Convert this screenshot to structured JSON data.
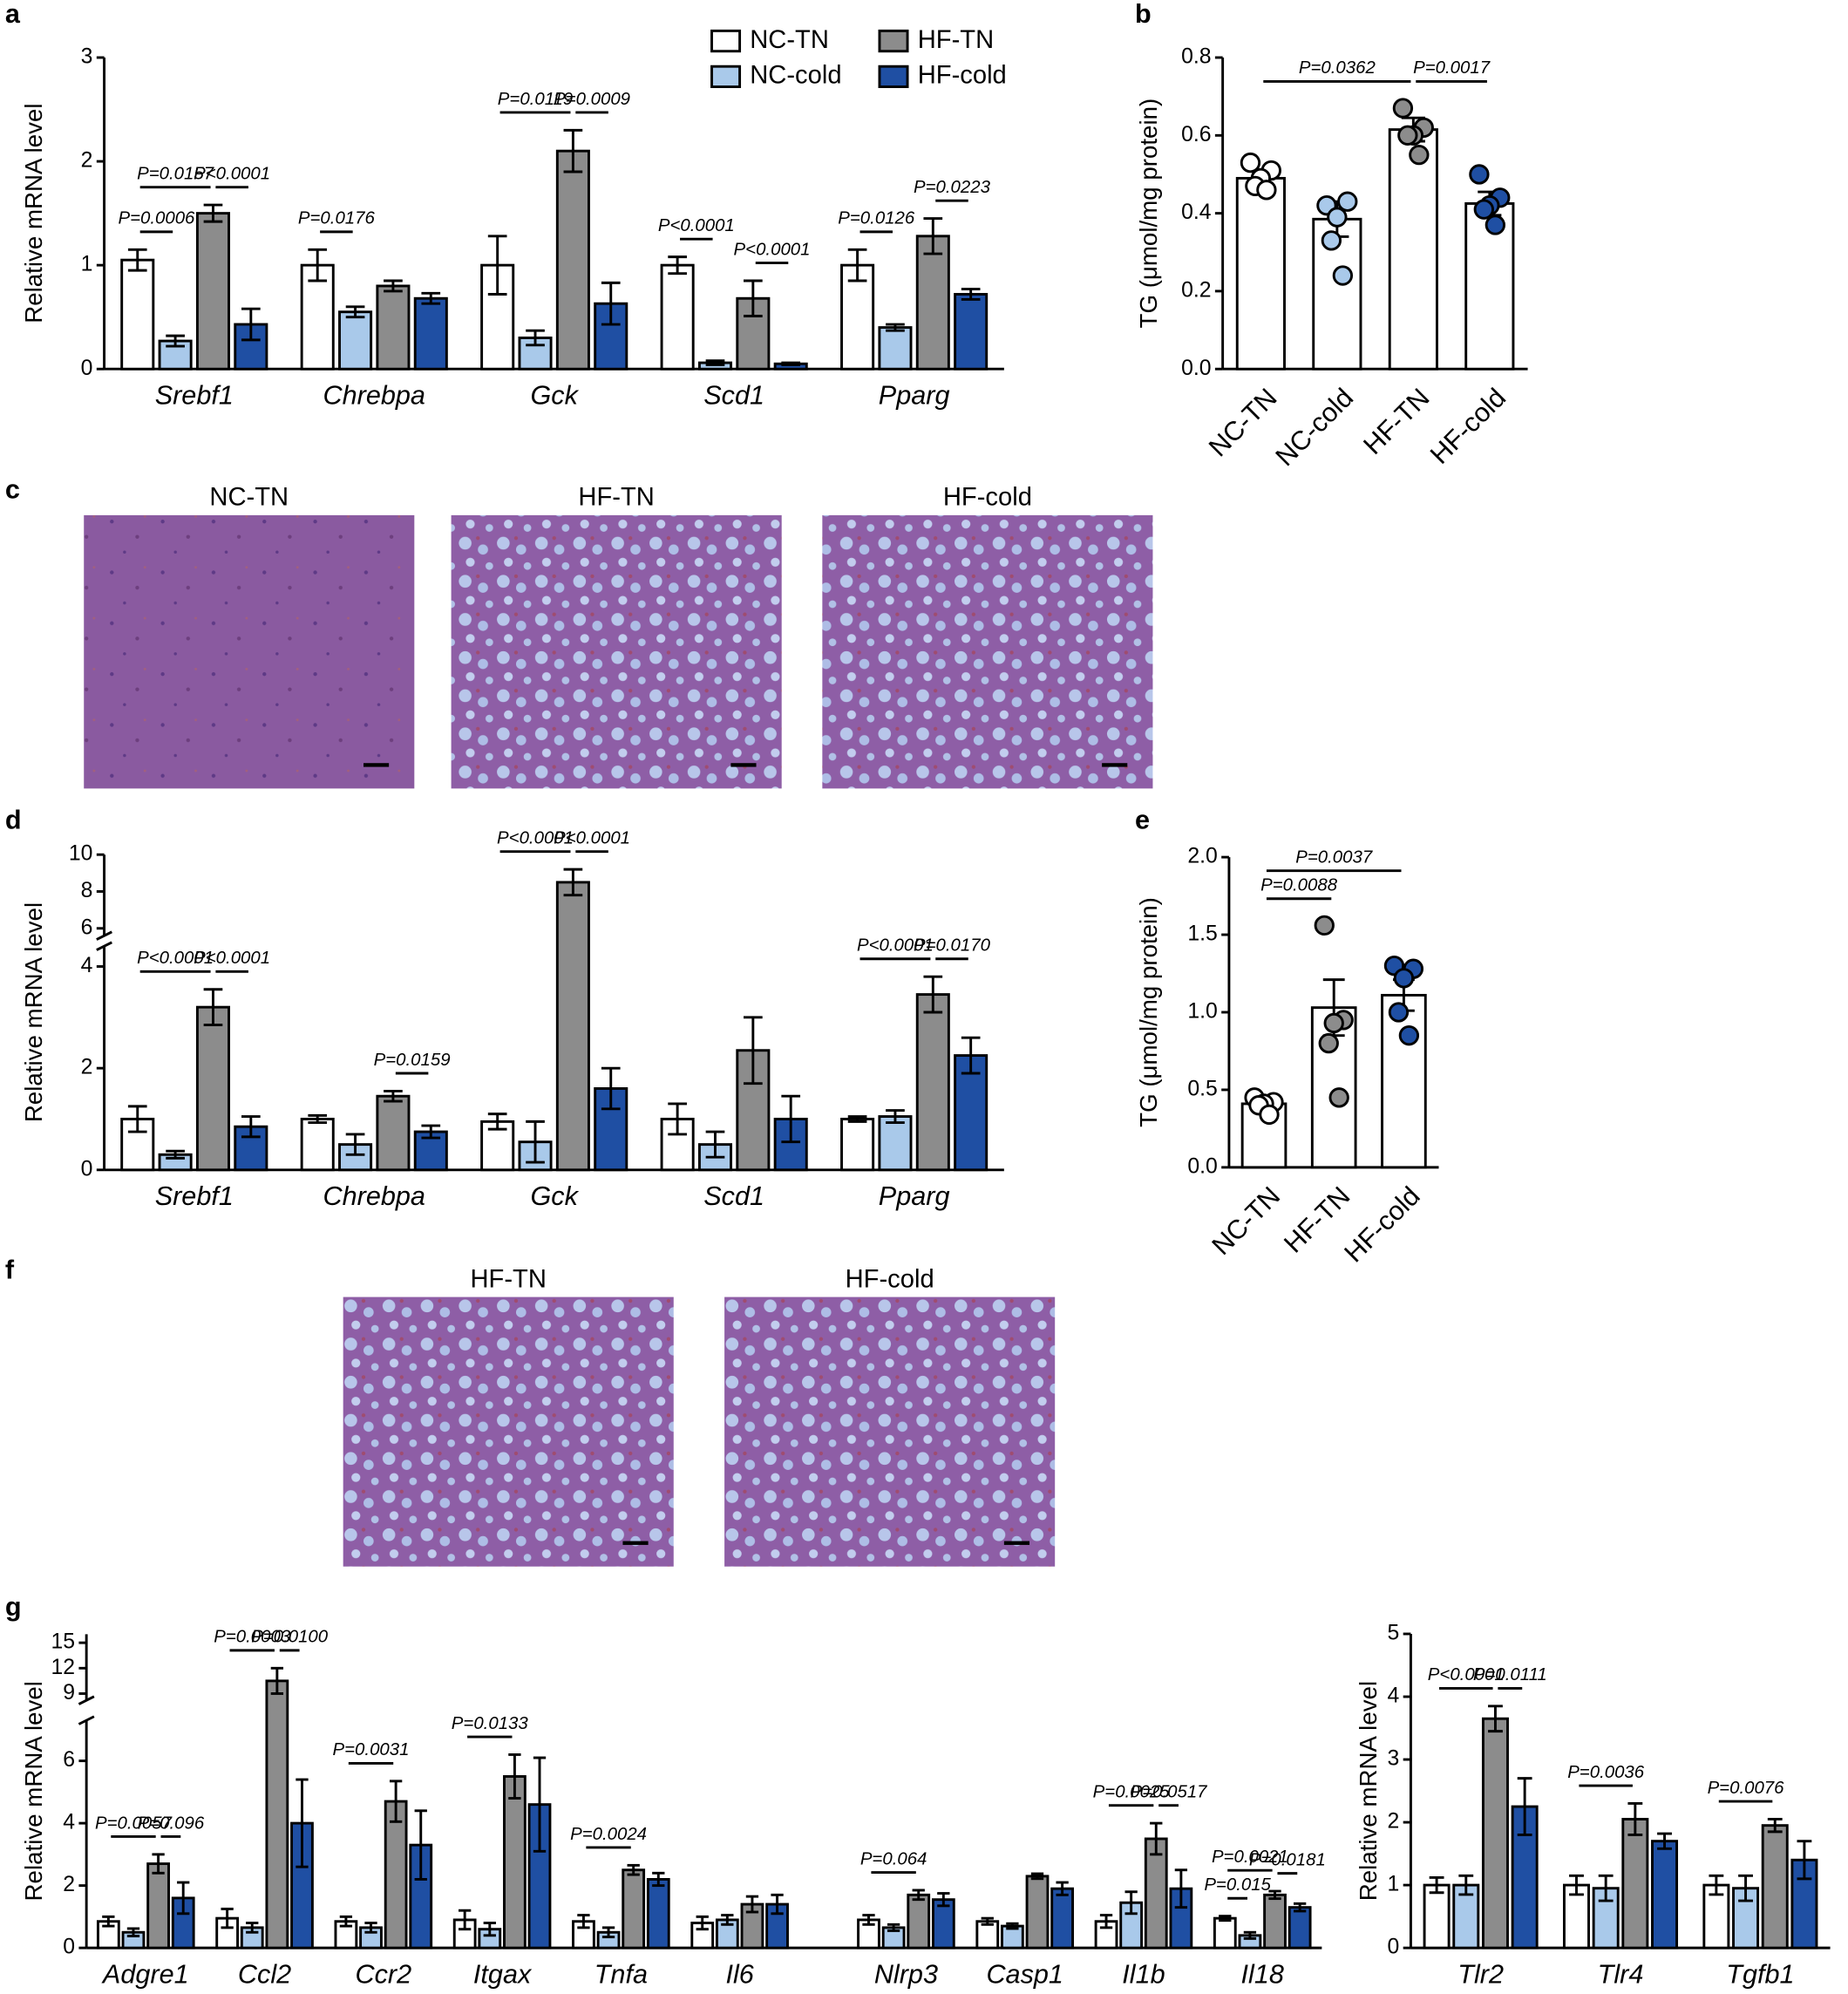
{
  "micrographs": [
    {
      "panel": "c",
      "labels": [
        "NC-TN",
        "HF-TN",
        "HF-cold"
      ]
    },
    {
      "panel": "f",
      "labels": [
        "HF-TN",
        "HF-cold"
      ]
    }
  ],
  "chart_data": [
    {
      "panel": "a",
      "type": "grouped-bar",
      "y_label": "Relative mRNA level",
      "legend": "top",
      "categories": [
        "Srebf1",
        "Chrebpa",
        "Gck",
        "Scd1",
        "Pparg"
      ],
      "series": [
        {
          "name": "NC-TN",
          "color": "#ffffff",
          "values": [
            1.05,
            1.0,
            1.0,
            1.0,
            1.0
          ],
          "errors": [
            0.1,
            0.15,
            0.28,
            0.08,
            0.15
          ]
        },
        {
          "name": "NC-cold",
          "color": "#a9c9ea",
          "values": [
            0.27,
            0.55,
            0.3,
            0.06,
            0.4
          ],
          "errors": [
            0.05,
            0.05,
            0.07,
            0.02,
            0.03
          ]
        },
        {
          "name": "HF-TN",
          "color": "#8c8c8c",
          "values": [
            1.5,
            0.8,
            2.1,
            0.68,
            1.28
          ],
          "errors": [
            0.08,
            0.05,
            0.2,
            0.17,
            0.17
          ]
        },
        {
          "name": "HF-cold",
          "color": "#1f4fa3",
          "values": [
            0.43,
            0.68,
            0.63,
            0.05,
            0.72
          ],
          "errors": [
            0.15,
            0.05,
            0.2,
            0.01,
            0.05
          ]
        }
      ],
      "ylim": [
        0,
        3
      ],
      "yticks": [
        0,
        1,
        2,
        3
      ],
      "significance": [
        {
          "category": 0,
          "from": 0,
          "to": 1,
          "label": "P=0.0006"
        },
        {
          "category": 0,
          "from": 0,
          "to": 2,
          "label": "P=0.0157"
        },
        {
          "category": 0,
          "from": 2,
          "to": 3,
          "label": "P<0.0001"
        },
        {
          "category": 1,
          "from": 0,
          "to": 1,
          "label": "P=0.0176"
        },
        {
          "category": 2,
          "from": 0,
          "to": 2,
          "label": "P=0.0119"
        },
        {
          "category": 2,
          "from": 2,
          "to": 3,
          "label": "P=0.0009"
        },
        {
          "category": 3,
          "from": 0,
          "to": 1,
          "label": "P<0.0001"
        },
        {
          "category": 3,
          "from": 2,
          "to": 3,
          "label": "P<0.0001"
        },
        {
          "category": 4,
          "from": 0,
          "to": 1,
          "label": "P=0.0126"
        },
        {
          "category": 4,
          "from": 2,
          "to": 3,
          "label": "P=0.0223"
        }
      ]
    },
    {
      "panel": "b",
      "type": "bar",
      "y_label": "TG (μmol/mg protein)",
      "categories": [
        "NC-TN",
        "NC-cold",
        "HF-TN",
        "HF-cold"
      ],
      "values": [
        0.49,
        0.385,
        0.615,
        0.425
      ],
      "errors": [
        0.02,
        0.045,
        0.03,
        0.03
      ],
      "colors": [
        "#ffffff",
        "#a9c9ea",
        "#8c8c8c",
        "#1f4fa3"
      ],
      "points": [
        [
          0.53,
          0.51,
          0.49,
          0.47,
          0.46
        ],
        [
          0.42,
          0.43,
          0.39,
          0.33,
          0.24
        ],
        [
          0.67,
          0.62,
          0.6,
          0.6,
          0.55
        ],
        [
          0.5,
          0.44,
          0.42,
          0.41,
          0.37
        ]
      ],
      "ylim": [
        0,
        0.8
      ],
      "yticks": [
        {
          "value": 0,
          "label": "0.0"
        },
        0.2,
        0.4,
        0.6,
        0.8
      ],
      "significance": [
        {
          "from": 0,
          "to": 2,
          "label": "P=0.0362"
        },
        {
          "from": 2,
          "to": 3,
          "label": "P=0.0017"
        }
      ]
    },
    {
      "panel": "d",
      "type": "grouped-bar",
      "y_label": "Relative mRNA level",
      "categories": [
        "Srebf1",
        "Chrebpa",
        "Gck",
        "Scd1",
        "Pparg"
      ],
      "series": [
        {
          "color": "#ffffff",
          "values": [
            1.0,
            1.0,
            0.95,
            1.0,
            1.0
          ],
          "errors": [
            0.25,
            0.07,
            0.15,
            0.3,
            0.05
          ]
        },
        {
          "color": "#a9c9ea",
          "values": [
            0.3,
            0.5,
            0.55,
            0.5,
            1.05
          ],
          "errors": [
            0.07,
            0.2,
            0.4,
            0.25,
            0.12
          ]
        },
        {
          "color": "#8c8c8c",
          "values": [
            3.2,
            1.45,
            8.5,
            2.35,
            3.45
          ],
          "errors": [
            0.35,
            0.1,
            0.7,
            0.65,
            0.35
          ]
        },
        {
          "color": "#1f4fa3",
          "values": [
            0.85,
            0.75,
            1.6,
            1.0,
            2.25
          ],
          "errors": [
            0.2,
            0.12,
            0.4,
            0.45,
            0.35
          ]
        }
      ],
      "ylim": [
        0,
        10
      ],
      "axis_break": [
        4.4,
        5.6
      ],
      "yticks": [
        0,
        2,
        4,
        6,
        8,
        10
      ],
      "significance": [
        {
          "category": 0,
          "from": 0,
          "to": 2,
          "label": "P<0.0001"
        },
        {
          "category": 0,
          "from": 2,
          "to": 3,
          "label": "P<0.0001"
        },
        {
          "category": 1,
          "from": 2,
          "to": 3,
          "label": "P=0.0159"
        },
        {
          "category": 2,
          "from": 0,
          "to": 2,
          "label": "P<0.0001"
        },
        {
          "category": 2,
          "from": 2,
          "to": 3,
          "label": "P<0.0001"
        },
        {
          "category": 4,
          "from": 0,
          "to": 2,
          "label": "P<0.0001"
        },
        {
          "category": 4,
          "from": 2,
          "to": 3,
          "label": "P=0.0170"
        }
      ]
    },
    {
      "panel": "e",
      "type": "bar",
      "y_label": "TG (μmol/mg protein)",
      "categories": [
        "NC-TN",
        "HF-TN",
        "HF-cold"
      ],
      "values": [
        0.41,
        1.03,
        1.11
      ],
      "errors": [
        0.04,
        0.18,
        0.1
      ],
      "colors": [
        "#ffffff",
        "#8c8c8c",
        "#1f4fa3"
      ],
      "points": [
        [
          0.45,
          0.42,
          0.41,
          0.4,
          0.34
        ],
        [
          1.56,
          0.95,
          0.93,
          0.8,
          0.45
        ],
        [
          1.3,
          1.28,
          1.22,
          1.0,
          0.85
        ]
      ],
      "ylim": [
        0,
        2
      ],
      "yticks": [
        {
          "value": 0,
          "label": "0.0"
        },
        0.5,
        {
          "value": 1,
          "label": "1.0"
        },
        1.5,
        {
          "value": 2,
          "label": "2.0"
        }
      ],
      "significance": [
        {
          "from": 0,
          "to": 1,
          "label": "P=0.0088"
        },
        {
          "from": 0,
          "to": 2,
          "label": "P=0.0037"
        }
      ]
    },
    {
      "panel": "g",
      "type": "grouped-bar",
      "y_label": "Relative mRNA level",
      "categories": [
        "Adgre1",
        "Ccl2",
        "Ccr2",
        "Itgax",
        "Tnfa",
        "Il6",
        "Nlrp3",
        "Casp1",
        "Il1b",
        "Il18"
      ],
      "series": [
        {
          "color": "#ffffff",
          "values": [
            0.85,
            0.95,
            0.85,
            0.9,
            0.85,
            0.8,
            0.9,
            0.85,
            0.85,
            0.95
          ],
          "errors": [
            0.15,
            0.3,
            0.15,
            0.3,
            0.2,
            0.2,
            0.15,
            0.1,
            0.2,
            0.07
          ]
        },
        {
          "color": "#a9c9ea",
          "values": [
            0.5,
            0.65,
            0.65,
            0.6,
            0.5,
            0.9,
            0.65,
            0.7,
            1.45,
            0.4
          ],
          "errors": [
            0.12,
            0.15,
            0.15,
            0.2,
            0.15,
            0.15,
            0.1,
            0.08,
            0.35,
            0.1
          ]
        },
        {
          "color": "#8c8c8c",
          "values": [
            2.7,
            10.5,
            4.7,
            5.5,
            2.5,
            1.4,
            1.7,
            2.3,
            3.5,
            1.7
          ],
          "errors": [
            0.3,
            1.5,
            0.65,
            0.7,
            0.15,
            0.25,
            0.15,
            0.08,
            0.5,
            0.12
          ]
        },
        {
          "color": "#1f4fa3",
          "values": [
            1.6,
            4.0,
            3.3,
            4.6,
            2.2,
            1.4,
            1.55,
            1.9,
            1.9,
            1.3
          ],
          "errors": [
            0.5,
            1.4,
            1.1,
            1.5,
            0.2,
            0.3,
            0.2,
            0.2,
            0.6,
            0.12
          ]
        }
      ],
      "ylim": [
        0,
        16
      ],
      "axis_break": [
        7.3,
        8.2
      ],
      "yticks": [
        0,
        2,
        4,
        6,
        9,
        12,
        15
      ],
      "significance": [
        {
          "category": 0,
          "from": 0,
          "to": 2,
          "label": "P=0.0057"
        },
        {
          "category": 0,
          "from": 2,
          "to": 3,
          "label": "P=0.096"
        },
        {
          "category": 1,
          "from": 0,
          "to": 2,
          "label": "P=0.0003"
        },
        {
          "category": 1,
          "from": 2,
          "to": 3,
          "label": "P=0.0100"
        },
        {
          "category": 2,
          "from": 0,
          "to": 2,
          "label": "P=0.0031"
        },
        {
          "category": 3,
          "from": 0,
          "to": 2,
          "label": "P=0.0133"
        },
        {
          "category": 4,
          "from": 0,
          "to": 2,
          "label": "P=0.0024"
        },
        {
          "category": 6,
          "from": 0,
          "to": 2,
          "label": "P=0.064"
        },
        {
          "category": 8,
          "from": 0,
          "to": 2,
          "label": "P=0.0025"
        },
        {
          "category": 8,
          "from": 2,
          "to": 3,
          "label": "P=0.0517"
        },
        {
          "category": 9,
          "from": 0,
          "to": 1,
          "label": "P=0.015"
        },
        {
          "category": 9,
          "from": 0,
          "to": 2,
          "label": "P=0.0021"
        },
        {
          "category": 9,
          "from": 2,
          "to": 3,
          "label": "P=0.0181"
        }
      ]
    },
    {
      "type": "grouped-bar",
      "y_label": "Relative mRNA level",
      "categories": [
        "Tlr2",
        "Tlr4",
        "Tgfb1"
      ],
      "series": [
        {
          "color": "#ffffff",
          "values": [
            1.0,
            1.0,
            1.0
          ],
          "errors": [
            0.12,
            0.15,
            0.15
          ]
        },
        {
          "color": "#a9c9ea",
          "values": [
            1.0,
            0.95,
            0.95
          ],
          "errors": [
            0.15,
            0.2,
            0.2
          ]
        },
        {
          "color": "#8c8c8c",
          "values": [
            3.65,
            2.05,
            1.95
          ],
          "errors": [
            0.2,
            0.25,
            0.1
          ]
        },
        {
          "color": "#1f4fa3",
          "values": [
            2.25,
            1.7,
            1.4
          ],
          "errors": [
            0.45,
            0.12,
            0.3
          ]
        }
      ],
      "ylim": [
        0,
        5
      ],
      "yticks": [
        0,
        1,
        2,
        3,
        4,
        5
      ],
      "significance": [
        {
          "category": 0,
          "from": 0,
          "to": 2,
          "label": "P<0.0001"
        },
        {
          "category": 0,
          "from": 2,
          "to": 3,
          "label": "P=0.0111"
        },
        {
          "category": 1,
          "from": 0,
          "to": 2,
          "label": "P=0.0036"
        },
        {
          "category": 2,
          "from": 0,
          "to": 2,
          "label": "P=0.0076"
        }
      ]
    }
  ]
}
